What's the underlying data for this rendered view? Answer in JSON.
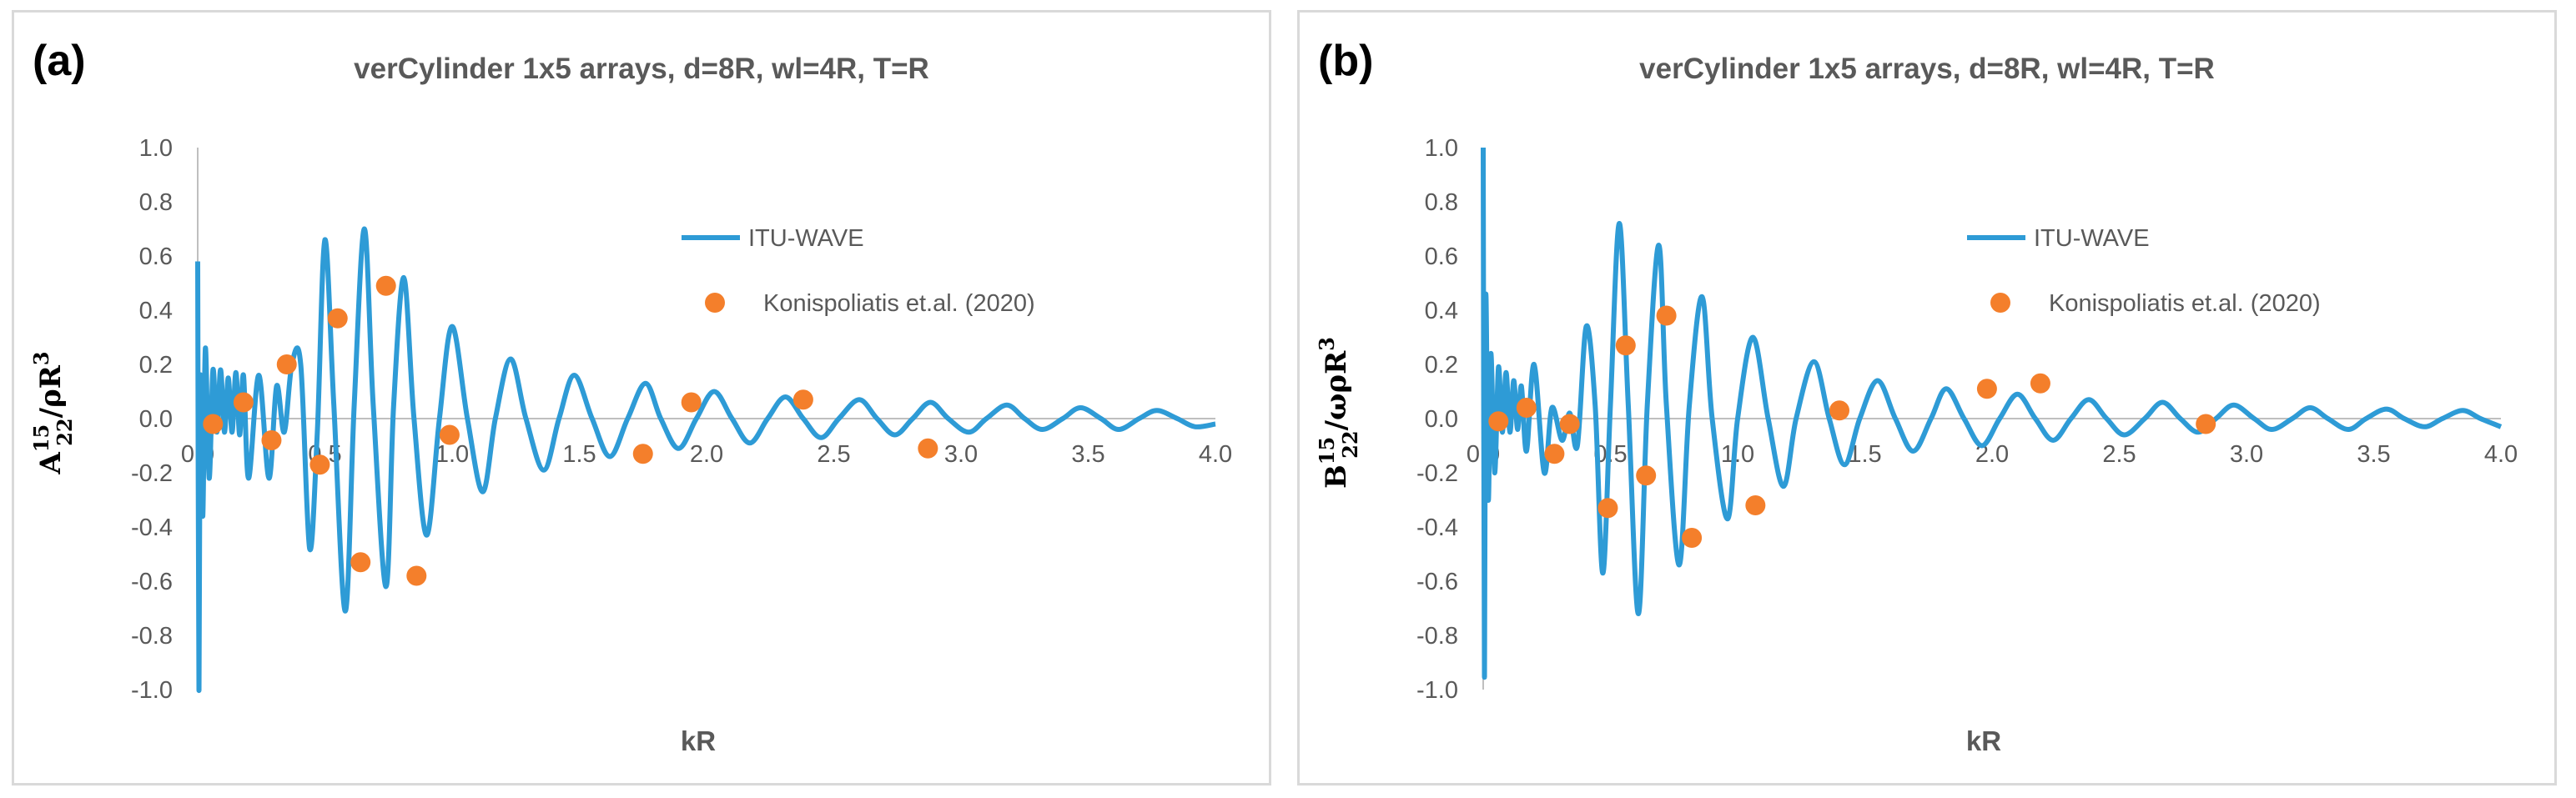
{
  "colors": {
    "line": "#2E9BD6",
    "marker": "#F47F2B",
    "axis": "#bfbfbf",
    "text": "#595959"
  },
  "chart_data": [
    {
      "panel": "(a)",
      "type": "line",
      "title": "verCylinder 1x5 arrays, d=8R, wl=4R, T=R",
      "xlabel": "kR",
      "ylabel_main": "A",
      "ylabel_sub": "22",
      "ylabel_sup": "15",
      "ylabel_rest": "/ρR",
      "ylabel_rest_sup": "3",
      "xlim": [
        0,
        4.0
      ],
      "ylim": [
        -1.0,
        1.0
      ],
      "x_ticks": [
        "0.0",
        "0.5",
        "1.0",
        "1.5",
        "2.0",
        "2.5",
        "3.0",
        "3.5",
        "4.0"
      ],
      "y_ticks": [
        "1.0",
        "0.8",
        "0.6",
        "0.4",
        "0.2",
        "0.0",
        "-0.2",
        "-0.4",
        "-0.6",
        "-0.8",
        "-1.0"
      ],
      "legend_position": "top-right",
      "series": [
        {
          "name": "ITU-WAVE",
          "kind": "line",
          "points": [
            [
              0.0,
              0.58
            ],
            [
              0.005,
              -1.0
            ],
            [
              0.01,
              0.15
            ],
            [
              0.02,
              -0.36
            ],
            [
              0.03,
              0.26
            ],
            [
              0.045,
              -0.22
            ],
            [
              0.06,
              0.18
            ],
            [
              0.075,
              -0.05
            ],
            [
              0.09,
              0.18
            ],
            [
              0.105,
              -0.05
            ],
            [
              0.12,
              0.15
            ],
            [
              0.135,
              -0.05
            ],
            [
              0.15,
              0.17
            ],
            [
              0.165,
              -0.06
            ],
            [
              0.18,
              0.16
            ],
            [
              0.2,
              -0.22
            ],
            [
              0.24,
              0.16
            ],
            [
              0.28,
              -0.22
            ],
            [
              0.31,
              0.12
            ],
            [
              0.34,
              -0.05
            ],
            [
              0.37,
              0.2
            ],
            [
              0.405,
              0.2
            ],
            [
              0.44,
              -0.48
            ],
            [
              0.47,
              -0.05
            ],
            [
              0.5,
              0.66
            ],
            [
              0.535,
              0.05
            ],
            [
              0.58,
              -0.71
            ],
            [
              0.615,
              0.05
            ],
            [
              0.655,
              0.7
            ],
            [
              0.69,
              0.05
            ],
            [
              0.74,
              -0.62
            ],
            [
              0.77,
              0.05
            ],
            [
              0.81,
              0.52
            ],
            [
              0.85,
              0.0
            ],
            [
              0.9,
              -0.43
            ],
            [
              0.95,
              0.0
            ],
            [
              1.0,
              0.34
            ],
            [
              1.06,
              0.0
            ],
            [
              1.12,
              -0.27
            ],
            [
              1.17,
              0.0
            ],
            [
              1.23,
              0.22
            ],
            [
              1.29,
              0.0
            ],
            [
              1.36,
              -0.19
            ],
            [
              1.42,
              0.0
            ],
            [
              1.48,
              0.16
            ],
            [
              1.55,
              0.0
            ],
            [
              1.62,
              -0.14
            ],
            [
              1.69,
              0.0
            ],
            [
              1.76,
              0.13
            ],
            [
              1.82,
              0.0
            ],
            [
              1.89,
              -0.11
            ],
            [
              1.96,
              0.0
            ],
            [
              2.03,
              0.1
            ],
            [
              2.1,
              0.0
            ],
            [
              2.17,
              -0.09
            ],
            [
              2.24,
              0.0
            ],
            [
              2.31,
              0.08
            ],
            [
              2.38,
              0.0
            ],
            [
              2.45,
              -0.07
            ],
            [
              2.52,
              0.0
            ],
            [
              2.6,
              0.07
            ],
            [
              2.67,
              0.0
            ],
            [
              2.74,
              -0.06
            ],
            [
              2.81,
              0.0
            ],
            [
              2.88,
              0.06
            ],
            [
              2.95,
              0.0
            ],
            [
              3.03,
              -0.05
            ],
            [
              3.1,
              0.0
            ],
            [
              3.18,
              0.05
            ],
            [
              3.25,
              0.0
            ],
            [
              3.32,
              -0.04
            ],
            [
              3.4,
              0.0
            ],
            [
              3.47,
              0.04
            ],
            [
              3.55,
              0.0
            ],
            [
              3.62,
              -0.04
            ],
            [
              3.7,
              0.0
            ],
            [
              3.77,
              0.03
            ],
            [
              3.85,
              0.0
            ],
            [
              3.92,
              -0.03
            ],
            [
              4.0,
              -0.02
            ]
          ]
        },
        {
          "name": "Konispoliatis et.al. (2020)",
          "kind": "scatter",
          "points": [
            [
              0.06,
              -0.02
            ],
            [
              0.18,
              0.06
            ],
            [
              0.29,
              -0.08
            ],
            [
              0.35,
              0.2
            ],
            [
              0.48,
              -0.17
            ],
            [
              0.55,
              0.37
            ],
            [
              0.64,
              -0.53
            ],
            [
              0.74,
              0.49
            ],
            [
              0.86,
              -0.58
            ],
            [
              0.99,
              -0.06
            ],
            [
              1.75,
              -0.13
            ],
            [
              1.94,
              0.06
            ],
            [
              2.38,
              0.07
            ],
            [
              2.87,
              -0.11
            ]
          ]
        }
      ]
    },
    {
      "panel": "(b)",
      "type": "line",
      "title": "verCylinder 1x5 arrays, d=8R, wl=4R, T=R",
      "xlabel": "kR",
      "ylabel_main": "B",
      "ylabel_sub": "22",
      "ylabel_sup": "15",
      "ylabel_rest": "/ωρR",
      "ylabel_rest_sup": "3",
      "xlim": [
        0,
        4.0
      ],
      "ylim": [
        -1.0,
        1.0
      ],
      "x_ticks": [
        "0.0",
        "0.5",
        "1.0",
        "1.5",
        "2.0",
        "2.5",
        "3.0",
        "3.5",
        "4.0"
      ],
      "y_ticks": [
        "1.0",
        "0.8",
        "0.6",
        "0.4",
        "0.2",
        "0.0",
        "-0.2",
        "-0.4",
        "-0.6",
        "-0.8",
        "-1.0"
      ],
      "legend_position": "top-right",
      "series": [
        {
          "name": "ITU-WAVE",
          "kind": "line",
          "points": [
            [
              0.0,
              1.0
            ],
            [
              0.005,
              -0.95
            ],
            [
              0.01,
              0.45
            ],
            [
              0.02,
              -0.3
            ],
            [
              0.03,
              0.24
            ],
            [
              0.045,
              -0.2
            ],
            [
              0.06,
              0.19
            ],
            [
              0.075,
              -0.05
            ],
            [
              0.09,
              0.17
            ],
            [
              0.105,
              -0.05
            ],
            [
              0.12,
              0.14
            ],
            [
              0.135,
              -0.04
            ],
            [
              0.15,
              0.12
            ],
            [
              0.17,
              -0.12
            ],
            [
              0.2,
              0.2
            ],
            [
              0.24,
              -0.2
            ],
            [
              0.27,
              0.04
            ],
            [
              0.31,
              -0.08
            ],
            [
              0.34,
              0.02
            ],
            [
              0.37,
              -0.1
            ],
            [
              0.405,
              0.34
            ],
            [
              0.44,
              0.05
            ],
            [
              0.47,
              -0.57
            ],
            [
              0.5,
              0.05
            ],
            [
              0.535,
              0.72
            ],
            [
              0.57,
              0.05
            ],
            [
              0.61,
              -0.72
            ],
            [
              0.645,
              0.05
            ],
            [
              0.69,
              0.64
            ],
            [
              0.72,
              0.05
            ],
            [
              0.77,
              -0.54
            ],
            [
              0.81,
              0.05
            ],
            [
              0.86,
              0.45
            ],
            [
              0.9,
              0.0
            ],
            [
              0.96,
              -0.37
            ],
            [
              1.0,
              0.0
            ],
            [
              1.06,
              0.3
            ],
            [
              1.12,
              0.0
            ],
            [
              1.18,
              -0.25
            ],
            [
              1.23,
              0.0
            ],
            [
              1.3,
              0.21
            ],
            [
              1.36,
              0.0
            ],
            [
              1.42,
              -0.17
            ],
            [
              1.48,
              0.0
            ],
            [
              1.55,
              0.14
            ],
            [
              1.62,
              0.0
            ],
            [
              1.69,
              -0.12
            ],
            [
              1.76,
              0.0
            ],
            [
              1.82,
              0.11
            ],
            [
              1.89,
              0.0
            ],
            [
              1.96,
              -0.1
            ],
            [
              2.03,
              0.0
            ],
            [
              2.1,
              0.09
            ],
            [
              2.17,
              0.0
            ],
            [
              2.24,
              -0.08
            ],
            [
              2.31,
              0.0
            ],
            [
              2.38,
              0.07
            ],
            [
              2.45,
              0.0
            ],
            [
              2.52,
              -0.06
            ],
            [
              2.6,
              0.0
            ],
            [
              2.67,
              0.06
            ],
            [
              2.74,
              0.0
            ],
            [
              2.81,
              -0.05
            ],
            [
              2.88,
              0.0
            ],
            [
              2.95,
              0.05
            ],
            [
              3.03,
              0.0
            ],
            [
              3.1,
              -0.04
            ],
            [
              3.18,
              0.0
            ],
            [
              3.25,
              0.04
            ],
            [
              3.32,
              0.0
            ],
            [
              3.4,
              -0.04
            ],
            [
              3.47,
              0.0
            ],
            [
              3.55,
              0.035
            ],
            [
              3.62,
              0.0
            ],
            [
              3.7,
              -0.03
            ],
            [
              3.77,
              0.0
            ],
            [
              3.85,
              0.03
            ],
            [
              3.92,
              0.0
            ],
            [
              4.0,
              -0.03
            ]
          ]
        },
        {
          "name": "Konispoliatis et.al. (2020)",
          "kind": "scatter",
          "points": [
            [
              0.06,
              -0.01
            ],
            [
              0.17,
              0.04
            ],
            [
              0.28,
              -0.13
            ],
            [
              0.34,
              -0.02
            ],
            [
              0.49,
              -0.33
            ],
            [
              0.56,
              0.27
            ],
            [
              0.64,
              -0.21
            ],
            [
              0.72,
              0.38
            ],
            [
              0.82,
              -0.44
            ],
            [
              1.07,
              -0.32
            ],
            [
              1.4,
              0.03
            ],
            [
              1.98,
              0.11
            ],
            [
              2.19,
              0.13
            ],
            [
              2.84,
              -0.02
            ]
          ]
        }
      ]
    }
  ]
}
